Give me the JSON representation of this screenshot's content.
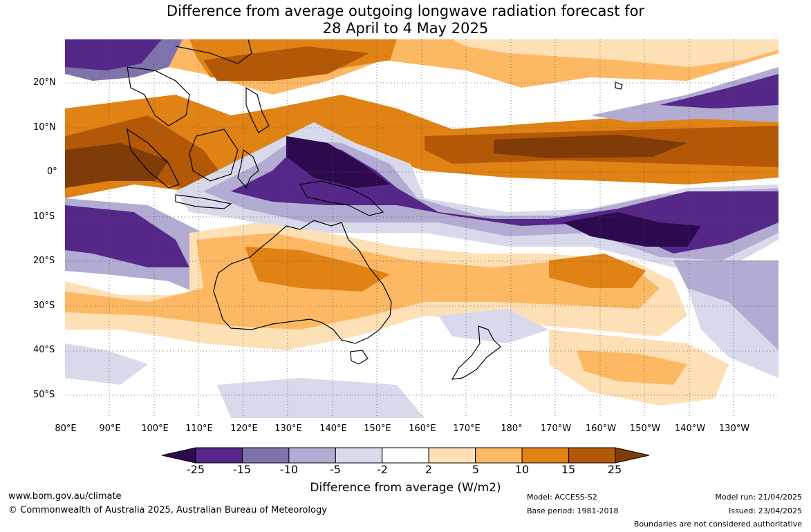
{
  "title": {
    "line1": "Difference from average outgoing longwave radiation forecast for",
    "line2": "28 April to 4 May 2025"
  },
  "lat_labels": [
    "20°N",
    "10°N",
    "0°",
    "10°S",
    "20°S",
    "30°S",
    "40°S",
    "50°S"
  ],
  "lon_labels": [
    "80°E",
    "90°E",
    "100°E",
    "110°E",
    "120°E",
    "130°E",
    "140°E",
    "150°E",
    "160°E",
    "170°E",
    "180°",
    "170°W",
    "160°W",
    "150°W",
    "140°W",
    "130°W"
  ],
  "colorbar": {
    "ticks": [
      "-25",
      "-15",
      "-10",
      "-5",
      "-2",
      "2",
      "5",
      "10",
      "15",
      "25"
    ],
    "colors": [
      "#2d0a4e",
      "#542788",
      "#8073ac",
      "#b2abd2",
      "#d8daeb",
      "#ffffff",
      "#fee0b6",
      "#fdb863",
      "#e08214",
      "#b35806",
      "#7f3b08"
    ],
    "title": "Difference from average (W/m2)"
  },
  "footer": {
    "url": "www.bom.gov.au/climate",
    "copyright": "© Commonwealth of Australia 2025, Australian Bureau of Meteorology",
    "model": "Model: ACCESS-S2",
    "base_period": "Base period: 1981-2018",
    "model_run": "Model run: 21/04/2025",
    "issued": "Issued: 23/04/2025",
    "boundaries": "Boundaries are not considered authoritative"
  }
}
